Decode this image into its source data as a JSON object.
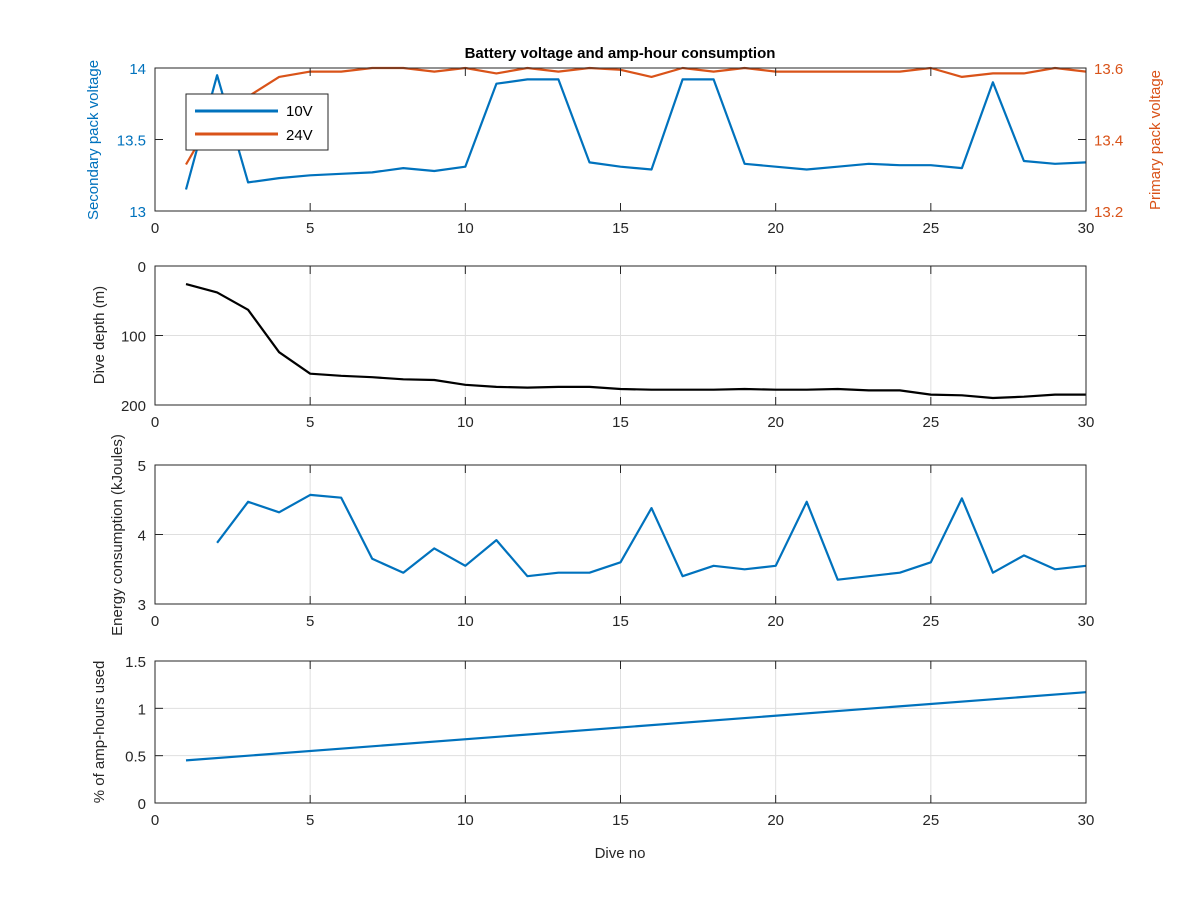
{
  "figure": {
    "title": "Battery voltage and amp-hour consumption",
    "xlabel": "Dive no"
  },
  "chart_data": [
    {
      "type": "line",
      "title": "Battery voltage and amp-hour consumption",
      "xlabel": "",
      "ylabel": "Secondary pack voltage",
      "ylabel_right": "Primary pack voltage",
      "xlim": [
        0,
        30
      ],
      "ylim": [
        13,
        14
      ],
      "ylim_right": [
        13.2,
        13.6
      ],
      "xticks": [
        "0",
        "5",
        "10",
        "15",
        "20",
        "25",
        "30"
      ],
      "yticks": [
        "13",
        "13.5",
        "14"
      ],
      "yticks_right": [
        "13.2",
        "13.4",
        "13.6"
      ],
      "grid": false,
      "legend": "upper-left",
      "x": [
        1,
        2,
        3,
        4,
        5,
        6,
        7,
        8,
        9,
        10,
        11,
        12,
        13,
        14,
        15,
        16,
        17,
        18,
        19,
        20,
        21,
        22,
        23,
        24,
        25,
        26,
        27,
        28,
        29,
        30
      ],
      "series": [
        {
          "name": "10V",
          "axis": "left",
          "color": "#0072BD",
          "values": [
            13.15,
            13.95,
            13.2,
            13.23,
            13.25,
            13.26,
            13.27,
            13.3,
            13.28,
            13.31,
            13.89,
            13.92,
            13.92,
            13.34,
            13.31,
            13.29,
            13.92,
            13.92,
            13.33,
            13.31,
            13.29,
            13.31,
            13.33,
            13.32,
            13.32,
            13.3,
            13.9,
            13.35,
            13.33,
            13.34
          ]
        },
        {
          "name": "24V",
          "axis": "right",
          "color": "#D95319",
          "values": [
            13.33,
            13.48,
            13.52,
            13.575,
            13.59,
            13.59,
            13.6,
            13.6,
            13.59,
            13.6,
            13.585,
            13.6,
            13.59,
            13.6,
            13.595,
            13.575,
            13.6,
            13.59,
            13.6,
            13.59,
            13.59,
            13.59,
            13.59,
            13.59,
            13.6,
            13.575,
            13.585,
            13.585,
            13.6,
            13.59
          ]
        }
      ]
    },
    {
      "type": "line",
      "xlabel": "",
      "ylabel": "Dive depth (m)",
      "xlim": [
        0,
        30
      ],
      "ylim": [
        0,
        200
      ],
      "y_reversed": true,
      "xticks": [
        "0",
        "5",
        "10",
        "15",
        "20",
        "25",
        "30"
      ],
      "yticks": [
        "0",
        "100",
        "200"
      ],
      "grid": true,
      "x": [
        1,
        2,
        3,
        4,
        5,
        6,
        7,
        8,
        9,
        10,
        11,
        12,
        13,
        14,
        15,
        16,
        17,
        18,
        19,
        20,
        21,
        22,
        23,
        24,
        25,
        26,
        27,
        28,
        29,
        30
      ],
      "series": [
        {
          "color": "#000000",
          "values": [
            26,
            38,
            63,
            124,
            155,
            158,
            160,
            163,
            164,
            171,
            174,
            175,
            174,
            174,
            177,
            178,
            178,
            178,
            177,
            178,
            178,
            177,
            179,
            179,
            185,
            186,
            190,
            188,
            185,
            185
          ]
        }
      ]
    },
    {
      "type": "line",
      "xlabel": "",
      "ylabel": "Energy consumption (kJoules)",
      "xlim": [
        0,
        30
      ],
      "ylim": [
        3,
        5
      ],
      "xticks": [
        "0",
        "5",
        "10",
        "15",
        "20",
        "25",
        "30"
      ],
      "yticks": [
        "3",
        "4",
        "5"
      ],
      "grid": true,
      "x": [
        2,
        3,
        4,
        5,
        6,
        7,
        8,
        9,
        10,
        11,
        12,
        13,
        14,
        15,
        16,
        17,
        18,
        19,
        20,
        21,
        22,
        23,
        24,
        25,
        26,
        27,
        28,
        29,
        30
      ],
      "series": [
        {
          "color": "#0072BD",
          "values": [
            3.88,
            4.47,
            4.32,
            4.57,
            4.53,
            3.65,
            3.45,
            3.8,
            3.55,
            3.92,
            3.4,
            3.45,
            3.45,
            3.6,
            4.38,
            3.4,
            3.55,
            3.5,
            3.55,
            4.47,
            3.35,
            3.4,
            3.45,
            3.6,
            4.52,
            3.45,
            3.7,
            3.5,
            3.55
          ]
        }
      ]
    },
    {
      "type": "line",
      "xlabel": "Dive no",
      "ylabel": "% of amp-hours used",
      "xlim": [
        0,
        30
      ],
      "ylim": [
        0,
        1.5
      ],
      "xticks": [
        "0",
        "5",
        "10",
        "15",
        "20",
        "25",
        "30"
      ],
      "yticks": [
        "0",
        "0.5",
        "1",
        "1.5"
      ],
      "grid": true,
      "x": [
        1,
        30
      ],
      "series": [
        {
          "color": "#0072BD",
          "values": [
            0.45,
            1.17
          ]
        }
      ]
    }
  ]
}
